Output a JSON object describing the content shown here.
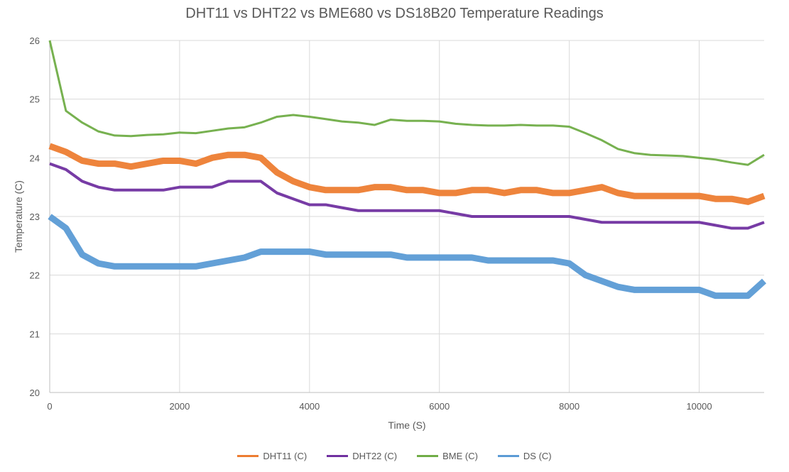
{
  "chart_data": {
    "type": "line",
    "title": "DHT11 vs DHT22 vs BME680 vs DS18B20 Temperature Readings",
    "xlabel": "Time (S)",
    "ylabel": "Temperature (C)",
    "xlim": [
      0,
      11000
    ],
    "ylim": [
      20,
      26
    ],
    "xticks": [
      0,
      2000,
      4000,
      6000,
      8000,
      10000
    ],
    "yticks": [
      20,
      21,
      22,
      23,
      24,
      25,
      26
    ],
    "grid": true,
    "legend_position": "bottom",
    "x": [
      0,
      250,
      500,
      750,
      1000,
      1250,
      1500,
      1750,
      2000,
      2250,
      2500,
      2750,
      3000,
      3250,
      3500,
      3750,
      4000,
      4250,
      4500,
      4750,
      5000,
      5250,
      5500,
      5750,
      6000,
      6250,
      6500,
      6750,
      7000,
      7250,
      7500,
      7750,
      8000,
      8250,
      8500,
      8750,
      9000,
      9250,
      9500,
      9750,
      10000,
      10250,
      10500,
      10750,
      11000
    ],
    "series": [
      {
        "name": "DHT11 (C)",
        "color": "#ED7D31",
        "values": [
          24.2,
          24.1,
          23.95,
          23.9,
          23.9,
          23.85,
          23.9,
          23.95,
          23.95,
          23.9,
          24.0,
          24.05,
          24.05,
          24.0,
          23.75,
          23.6,
          23.5,
          23.45,
          23.45,
          23.45,
          23.5,
          23.5,
          23.45,
          23.45,
          23.4,
          23.4,
          23.45,
          23.45,
          23.4,
          23.45,
          23.45,
          23.4,
          23.4,
          23.45,
          23.5,
          23.4,
          23.35,
          23.35,
          23.35,
          23.35,
          23.35,
          23.3,
          23.3,
          23.25,
          23.35
        ]
      },
      {
        "name": "DHT22 (C)",
        "color": "#7030A0",
        "values": [
          23.9,
          23.8,
          23.6,
          23.5,
          23.45,
          23.45,
          23.45,
          23.45,
          23.5,
          23.5,
          23.5,
          23.6,
          23.6,
          23.6,
          23.4,
          23.3,
          23.2,
          23.2,
          23.15,
          23.1,
          23.1,
          23.1,
          23.1,
          23.1,
          23.1,
          23.05,
          23.0,
          23.0,
          23.0,
          23.0,
          23.0,
          23.0,
          23.0,
          22.95,
          22.9,
          22.9,
          22.9,
          22.9,
          22.9,
          22.9,
          22.9,
          22.85,
          22.8,
          22.8,
          22.9
        ]
      },
      {
        "name": "BME (C)",
        "color": "#70AD47",
        "values": [
          26.0,
          24.8,
          24.6,
          24.45,
          24.38,
          24.37,
          24.39,
          24.4,
          24.43,
          24.42,
          24.46,
          24.5,
          24.52,
          24.6,
          24.7,
          24.73,
          24.7,
          24.66,
          24.62,
          24.6,
          24.56,
          24.65,
          24.63,
          24.63,
          24.62,
          24.58,
          24.56,
          24.55,
          24.55,
          24.56,
          24.55,
          24.55,
          24.53,
          24.42,
          24.3,
          24.15,
          24.08,
          24.05,
          24.04,
          24.03,
          24.0,
          23.97,
          23.92,
          23.88,
          24.05
        ]
      },
      {
        "name": "DS (C)",
        "color": "#5B9BD5",
        "values": [
          23.0,
          22.8,
          22.35,
          22.2,
          22.15,
          22.15,
          22.15,
          22.15,
          22.15,
          22.15,
          22.2,
          22.25,
          22.3,
          22.4,
          22.4,
          22.4,
          22.4,
          22.35,
          22.35,
          22.35,
          22.35,
          22.35,
          22.3,
          22.3,
          22.3,
          22.3,
          22.3,
          22.25,
          22.25,
          22.25,
          22.25,
          22.25,
          22.2,
          22.0,
          21.9,
          21.8,
          21.75,
          21.75,
          21.75,
          21.75,
          21.75,
          21.65,
          21.65,
          21.65,
          21.9
        ]
      }
    ]
  }
}
